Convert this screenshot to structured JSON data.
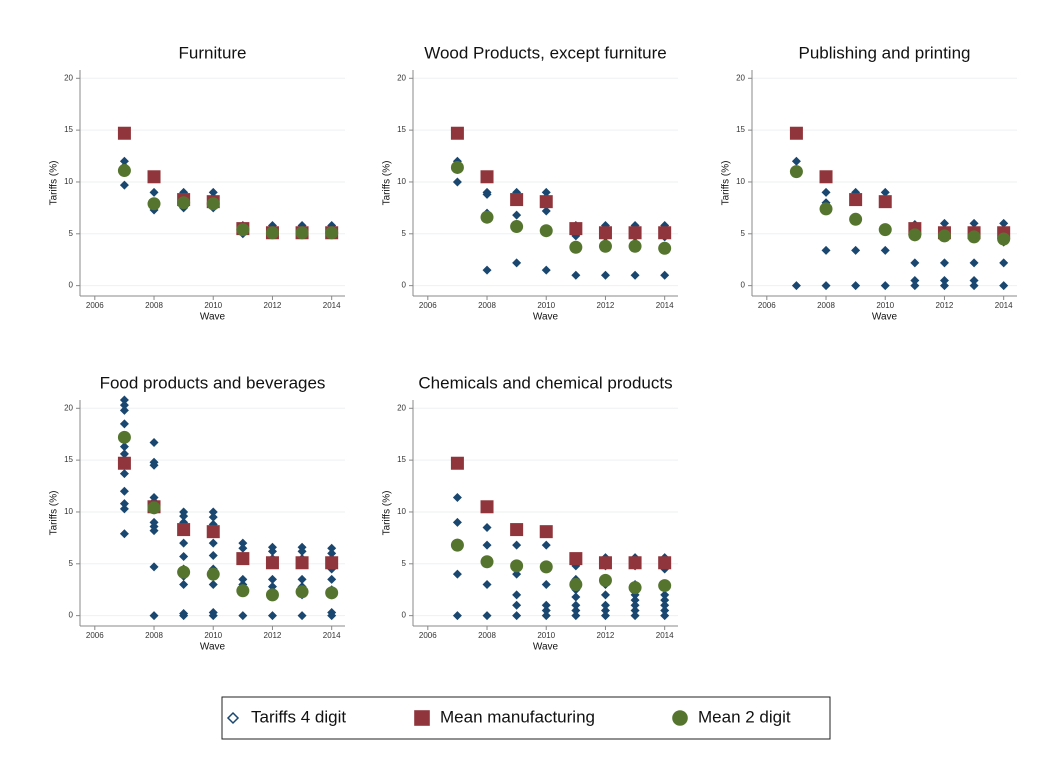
{
  "chart_data": [
    {
      "type": "scatter",
      "title": "Furniture",
      "x_label": "Wave",
      "y_label": "Tariffs (%)",
      "xlim": [
        2005.5,
        2014.45
      ],
      "xticks": [
        2006,
        2008,
        2010,
        2012,
        2014
      ],
      "ylim": [
        -1,
        20.8
      ],
      "yticks": [
        0,
        5,
        10,
        15,
        20
      ],
      "grid": true,
      "series": [
        {
          "name": "Tariffs 4 digit",
          "marker": "diamond",
          "color": "#1a476f",
          "x": [
            2007,
            2007,
            2007,
            2007,
            2008,
            2008,
            2008,
            2009,
            2009,
            2009,
            2009,
            2010,
            2010,
            2010,
            2011,
            2011,
            2011,
            2012,
            2012,
            2013,
            2013,
            2014,
            2014
          ],
          "values": [
            12,
            11.5,
            11,
            9.7,
            9,
            8,
            7.3,
            9,
            8.5,
            8,
            7.5,
            9,
            8.5,
            7.5,
            5.8,
            5.2,
            5,
            5.8,
            5.2,
            5.8,
            5.2,
            5.8,
            5.2
          ]
        },
        {
          "name": "Mean manufacturing",
          "marker": "square",
          "color": "#90353b",
          "x": [
            2007,
            2008,
            2009,
            2010,
            2011,
            2012,
            2013,
            2014
          ],
          "values": [
            14.7,
            10.5,
            8.3,
            8.1,
            5.5,
            5.1,
            5.1,
            5.1
          ]
        },
        {
          "name": "Mean 2 digit",
          "marker": "circle",
          "color": "#55752f",
          "x": [
            2007,
            2008,
            2009,
            2010,
            2011,
            2012,
            2013,
            2014
          ],
          "values": [
            11.1,
            7.9,
            8.0,
            7.9,
            5.4,
            5.1,
            5.1,
            5.1
          ]
        }
      ]
    },
    {
      "type": "scatter",
      "title": "Wood Products, except furniture",
      "x_label": "Wave",
      "y_label": "Tariffs (%)",
      "xlim": [
        2005.5,
        2014.45
      ],
      "xticks": [
        2006,
        2008,
        2010,
        2012,
        2014
      ],
      "ylim": [
        -1,
        20.8
      ],
      "yticks": [
        0,
        5,
        10,
        15,
        20
      ],
      "grid": true,
      "series": [
        {
          "marker": "diamond",
          "color": "#1a476f",
          "x": [
            2007,
            2007,
            2007,
            2008,
            2008,
            2008,
            2008,
            2009,
            2009,
            2009,
            2009,
            2009,
            2010,
            2010,
            2010,
            2010,
            2010,
            2011,
            2011,
            2011,
            2011,
            2012,
            2012,
            2012,
            2012,
            2013,
            2013,
            2013,
            2013,
            2014,
            2014,
            2014,
            2014
          ],
          "values": [
            12,
            11.5,
            10,
            9,
            8.8,
            7,
            1.5,
            9,
            8.5,
            6.8,
            5.8,
            2.2,
            9,
            8.5,
            7.2,
            5.3,
            1.5,
            5.8,
            5.2,
            4.8,
            1,
            5.8,
            5.2,
            4.7,
            1,
            5.8,
            5.2,
            4.7,
            1,
            5.8,
            5.2,
            4.7,
            1
          ]
        },
        {
          "marker": "square",
          "color": "#90353b",
          "x": [
            2007,
            2008,
            2009,
            2010,
            2011,
            2012,
            2013,
            2014
          ],
          "values": [
            14.7,
            10.5,
            8.3,
            8.1,
            5.5,
            5.1,
            5.1,
            5.1
          ]
        },
        {
          "marker": "circle",
          "color": "#55752f",
          "x": [
            2007,
            2008,
            2009,
            2010,
            2011,
            2012,
            2013,
            2014
          ],
          "values": [
            11.4,
            6.6,
            5.7,
            5.3,
            3.7,
            3.8,
            3.8,
            3.6
          ]
        }
      ]
    },
    {
      "type": "scatter",
      "title": "Publishing and printing",
      "x_label": "Wave",
      "y_label": "Tariffs (%)",
      "xlim": [
        2005.5,
        2014.45
      ],
      "xticks": [
        2006,
        2008,
        2010,
        2012,
        2014
      ],
      "ylim": [
        -1,
        20.8
      ],
      "yticks": [
        0,
        5,
        10,
        15,
        20
      ],
      "grid": true,
      "series": [
        {
          "marker": "diamond",
          "color": "#1a476f",
          "x": [
            2007,
            2007,
            2007,
            2008,
            2008,
            2008,
            2008,
            2009,
            2009,
            2009,
            2009,
            2009,
            2010,
            2010,
            2010,
            2010,
            2011,
            2011,
            2011,
            2011,
            2011,
            2012,
            2012,
            2012,
            2012,
            2012,
            2013,
            2013,
            2013,
            2013,
            2013,
            2014,
            2014,
            2014,
            2014
          ],
          "values": [
            12,
            11,
            0,
            9,
            8,
            3.4,
            0,
            9,
            8.6,
            6.3,
            3.4,
            0,
            9,
            5.4,
            3.4,
            0,
            5.9,
            5,
            2.2,
            0.5,
            0,
            6,
            5,
            2.2,
            0.5,
            0,
            6,
            5,
            2.2,
            0.5,
            0,
            6,
            4.2,
            2.2,
            0
          ]
        },
        {
          "marker": "square",
          "color": "#90353b",
          "x": [
            2007,
            2008,
            2009,
            2010,
            2011,
            2012,
            2013,
            2014
          ],
          "values": [
            14.7,
            10.5,
            8.3,
            8.1,
            5.5,
            5.1,
            5.1,
            5.1
          ]
        },
        {
          "marker": "circle",
          "color": "#55752f",
          "x": [
            2007,
            2008,
            2009,
            2010,
            2011,
            2012,
            2013,
            2014
          ],
          "values": [
            11.0,
            7.4,
            6.4,
            5.4,
            4.9,
            4.8,
            4.7,
            4.5
          ]
        }
      ]
    },
    {
      "type": "scatter",
      "title": "Food products and beverages",
      "x_label": "Wave",
      "y_label": "Tariffs (%)",
      "xlim": [
        2005.5,
        2014.45
      ],
      "xticks": [
        2006,
        2008,
        2010,
        2012,
        2014
      ],
      "ylim": [
        -1,
        20.8
      ],
      "yticks": [
        0,
        5,
        10,
        15,
        20
      ],
      "grid": true,
      "series": [
        {
          "marker": "diamond",
          "color": "#1a476f",
          "x": [
            2007,
            2007,
            2007,
            2007,
            2007,
            2007,
            2007,
            2007,
            2007,
            2007,
            2007,
            2007,
            2007,
            2008,
            2008,
            2008,
            2008,
            2008,
            2008,
            2008,
            2008,
            2008,
            2008,
            2008,
            2009,
            2009,
            2009,
            2009,
            2009,
            2009,
            2009,
            2009,
            2009,
            2009,
            2009,
            2010,
            2010,
            2010,
            2010,
            2010,
            2010,
            2010,
            2010,
            2010,
            2010,
            2011,
            2011,
            2011,
            2011,
            2011,
            2011,
            2011,
            2012,
            2012,
            2012,
            2012,
            2012,
            2012,
            2012,
            2013,
            2013,
            2013,
            2013,
            2013,
            2013,
            2013,
            2014,
            2014,
            2014,
            2014,
            2014,
            2014,
            2014,
            2014
          ],
          "values": [
            20.8,
            20.3,
            19.8,
            18.5,
            17,
            16.3,
            15.6,
            14.7,
            13.7,
            12,
            10.8,
            10.3,
            7.9,
            16.7,
            14.8,
            14.5,
            11.4,
            11,
            10.5,
            9,
            8.6,
            8.2,
            4.7,
            0,
            10,
            9.6,
            9,
            8.3,
            7,
            5.7,
            4.5,
            3.8,
            3,
            0.2,
            0,
            10,
            9.5,
            8.8,
            8,
            7,
            5.8,
            4.5,
            3,
            0.3,
            0,
            7,
            6.5,
            5.7,
            3.5,
            3,
            2.5,
            0,
            6.6,
            6.2,
            5.5,
            3.5,
            2.8,
            2,
            0,
            6.6,
            6.2,
            5.5,
            3.5,
            2.8,
            2,
            0,
            6.5,
            6,
            5.5,
            4.5,
            3.5,
            2.5,
            0.3,
            0
          ]
        },
        {
          "marker": "square",
          "color": "#90353b",
          "x": [
            2007,
            2008,
            2009,
            2010,
            2011,
            2012,
            2013,
            2014
          ],
          "values": [
            14.7,
            10.5,
            8.3,
            8.1,
            5.5,
            5.1,
            5.1,
            5.1
          ]
        },
        {
          "marker": "circle",
          "color": "#55752f",
          "x": [
            2007,
            2008,
            2009,
            2010,
            2011,
            2012,
            2013,
            2014
          ],
          "values": [
            17.2,
            10.4,
            4.2,
            4.0,
            2.4,
            2.0,
            2.3,
            2.2
          ]
        }
      ]
    },
    {
      "type": "scatter",
      "title": "Chemicals and chemical products",
      "x_label": "Wave",
      "y_label": "Tariffs (%)",
      "xlim": [
        2005.5,
        2014.45
      ],
      "xticks": [
        2006,
        2008,
        2010,
        2012,
        2014
      ],
      "ylim": [
        -1,
        20.8
      ],
      "yticks": [
        0,
        5,
        10,
        15,
        20
      ],
      "grid": true,
      "series": [
        {
          "marker": "diamond",
          "color": "#1a476f",
          "x": [
            2007,
            2007,
            2007,
            2007,
            2007,
            2008,
            2008,
            2008,
            2008,
            2008,
            2009,
            2009,
            2009,
            2009,
            2009,
            2009,
            2010,
            2010,
            2010,
            2010,
            2010,
            2010,
            2011,
            2011,
            2011,
            2011,
            2011,
            2011,
            2011,
            2012,
            2012,
            2012,
            2012,
            2012,
            2012,
            2012,
            2013,
            2013,
            2013,
            2013,
            2013,
            2013,
            2013,
            2013,
            2014,
            2014,
            2014,
            2014,
            2014,
            2014,
            2014,
            2014
          ],
          "values": [
            11.4,
            9,
            7,
            4,
            0,
            8.5,
            6.8,
            5,
            3,
            0,
            6.8,
            4.9,
            4,
            2,
            1,
            0,
            6.8,
            4.8,
            3,
            1,
            0.5,
            0,
            4.8,
            3.5,
            2.5,
            1.8,
            1,
            0.5,
            0,
            5.6,
            4.8,
            3,
            2,
            1,
            0.5,
            0,
            5.6,
            4.8,
            3,
            2,
            1.5,
            1,
            0.5,
            0,
            5.6,
            4.5,
            3,
            2,
            1.5,
            1,
            0.5,
            0
          ]
        },
        {
          "marker": "square",
          "color": "#90353b",
          "x": [
            2007,
            2008,
            2009,
            2010,
            2011,
            2012,
            2013,
            2014
          ],
          "values": [
            14.7,
            10.5,
            8.3,
            8.1,
            5.5,
            5.1,
            5.1,
            5.1
          ]
        },
        {
          "marker": "circle",
          "color": "#55752f",
          "x": [
            2007,
            2008,
            2009,
            2010,
            2011,
            2012,
            2013,
            2014
          ],
          "values": [
            6.8,
            5.2,
            4.8,
            4.7,
            3.0,
            3.4,
            2.7,
            2.9
          ]
        }
      ]
    }
  ]
}
